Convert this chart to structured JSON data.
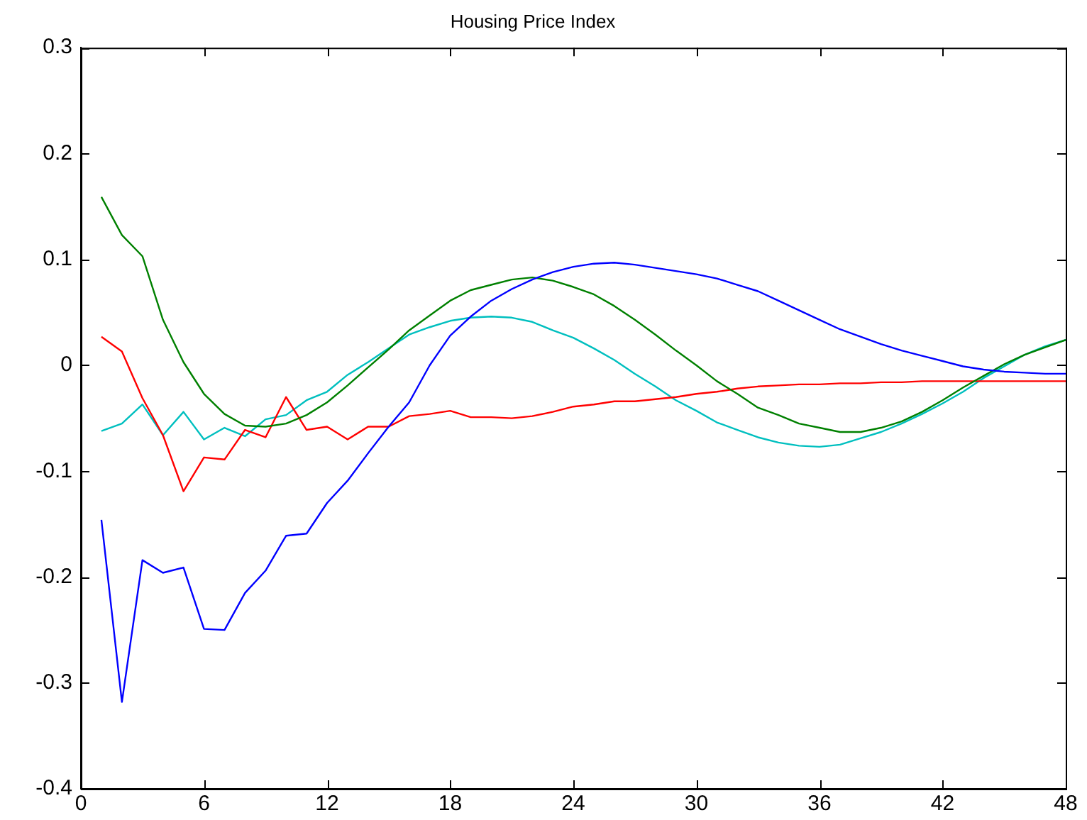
{
  "chart_data": {
    "type": "line",
    "title": "Housing Price Index",
    "x": [
      1,
      2,
      3,
      4,
      5,
      6,
      7,
      8,
      9,
      10,
      11,
      12,
      13,
      14,
      15,
      16,
      17,
      18,
      19,
      20,
      21,
      22,
      23,
      24,
      25,
      26,
      27,
      28,
      29,
      30,
      31,
      32,
      33,
      34,
      35,
      36,
      37,
      38,
      39,
      40,
      41,
      42,
      43,
      44,
      45,
      46,
      47,
      48
    ],
    "series": [
      {
        "color": "#0000ff",
        "values": [
          -0.146,
          -0.318,
          -0.184,
          -0.196,
          -0.191,
          -0.249,
          -0.25,
          -0.215,
          -0.194,
          -0.161,
          -0.159,
          -0.13,
          -0.109,
          -0.083,
          -0.058,
          -0.035,
          0.0,
          0.028,
          0.046,
          0.061,
          0.072,
          0.081,
          0.088,
          0.093,
          0.096,
          0.097,
          0.095,
          0.092,
          0.089,
          0.086,
          0.082,
          0.076,
          0.07,
          0.061,
          0.052,
          0.043,
          0.034,
          0.027,
          0.02,
          0.014,
          0.009,
          0.004,
          -0.001,
          -0.004,
          -0.006,
          -0.007,
          -0.008,
          -0.008
        ]
      },
      {
        "color": "#008000",
        "values": [
          0.159,
          0.123,
          0.103,
          0.043,
          0.003,
          -0.027,
          -0.046,
          -0.057,
          -0.058,
          -0.055,
          -0.047,
          -0.035,
          -0.019,
          -0.002,
          0.015,
          0.033,
          0.047,
          0.061,
          0.071,
          0.076,
          0.081,
          0.083,
          0.08,
          0.074,
          0.067,
          0.056,
          0.043,
          0.029,
          0.014,
          0.0,
          -0.015,
          -0.027,
          -0.04,
          -0.047,
          -0.055,
          -0.059,
          -0.063,
          -0.063,
          -0.059,
          -0.053,
          -0.044,
          -0.033,
          -0.021,
          -0.01,
          0.001,
          0.01,
          0.017,
          0.024
        ]
      },
      {
        "color": "#ff0000",
        "values": [
          0.027,
          0.013,
          -0.031,
          -0.066,
          -0.119,
          -0.087,
          -0.089,
          -0.061,
          -0.068,
          -0.03,
          -0.061,
          -0.058,
          -0.07,
          -0.058,
          -0.058,
          -0.048,
          -0.046,
          -0.043,
          -0.049,
          -0.049,
          -0.05,
          -0.048,
          -0.044,
          -0.039,
          -0.037,
          -0.034,
          -0.034,
          -0.032,
          -0.03,
          -0.027,
          -0.025,
          -0.022,
          -0.02,
          -0.019,
          -0.018,
          -0.018,
          -0.017,
          -0.017,
          -0.016,
          -0.016,
          -0.015,
          -0.015,
          -0.015,
          -0.015,
          -0.015,
          -0.015,
          -0.015,
          -0.015
        ]
      },
      {
        "color": "#00bfbf",
        "values": [
          -0.062,
          -0.055,
          -0.037,
          -0.066,
          -0.044,
          -0.07,
          -0.059,
          -0.067,
          -0.051,
          -0.047,
          -0.033,
          -0.025,
          -0.009,
          0.003,
          0.016,
          0.029,
          0.036,
          0.042,
          0.045,
          0.046,
          0.045,
          0.041,
          0.033,
          0.026,
          0.016,
          0.005,
          -0.008,
          -0.02,
          -0.033,
          -0.043,
          -0.054,
          -0.061,
          -0.068,
          -0.073,
          -0.076,
          -0.077,
          -0.075,
          -0.069,
          -0.063,
          -0.055,
          -0.046,
          -0.036,
          -0.025,
          -0.012,
          -0.001,
          0.01,
          0.018,
          0.024
        ]
      }
    ],
    "xlim": [
      0,
      48
    ],
    "xticks": [
      0,
      6,
      12,
      18,
      24,
      30,
      36,
      42,
      48
    ],
    "ylim": [
      -0.4,
      0.3
    ],
    "yticks": [
      -0.4,
      -0.3,
      -0.2,
      -0.1,
      0,
      0.1,
      0.2,
      0.3
    ],
    "grid": false,
    "legend": false,
    "marker": "none",
    "line_style": "solid"
  }
}
